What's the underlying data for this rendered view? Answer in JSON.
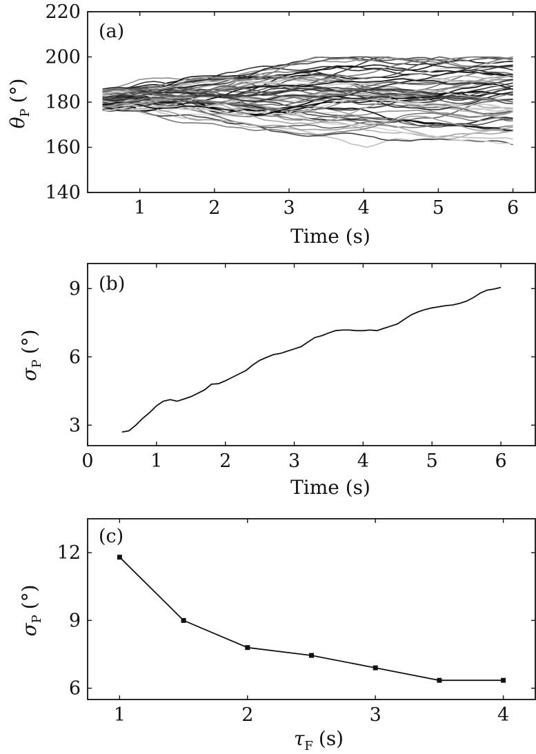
{
  "chart_data": [
    {
      "panel": "(a)",
      "type": "line",
      "xlabel": "Time (s)",
      "ylabel_symbol": "θ",
      "ylabel_subscript": "P",
      "ylabel_unit": "(°)",
      "xlim": [
        0.3,
        6.3
      ],
      "ylim": [
        140,
        220
      ],
      "xticks": [
        1,
        2,
        3,
        4,
        5,
        6
      ],
      "yticks": [
        140,
        160,
        180,
        200,
        220
      ],
      "x_range": [
        0.5,
        6.0
      ],
      "series_count": 60,
      "start_band": [
        176,
        186
      ],
      "end_band": [
        160,
        200
      ],
      "grayscale_series": true,
      "grid": false,
      "legend": "none"
    },
    {
      "panel": "(b)",
      "type": "line",
      "xlabel": "Time (s)",
      "ylabel_symbol": "σ",
      "ylabel_subscript": "P",
      "ylabel_unit": "(°)",
      "xlim": [
        0,
        6.5
      ],
      "ylim": [
        2.1,
        10.1
      ],
      "xticks": [
        0,
        1,
        2,
        3,
        4,
        5,
        6
      ],
      "yticks": [
        3,
        6,
        9
      ],
      "x": [
        0.5,
        0.6,
        0.7,
        0.8,
        0.9,
        1.0,
        1.1,
        1.2,
        1.3,
        1.4,
        1.5,
        1.6,
        1.7,
        1.8,
        1.9,
        2.0,
        2.1,
        2.2,
        2.3,
        2.4,
        2.5,
        2.6,
        2.7,
        2.8,
        2.9,
        3.0,
        3.1,
        3.2,
        3.3,
        3.4,
        3.5,
        3.6,
        3.7,
        3.8,
        3.9,
        4.0,
        4.1,
        4.2,
        4.3,
        4.4,
        4.5,
        4.6,
        4.7,
        4.8,
        4.9,
        5.0,
        5.1,
        5.2,
        5.3,
        5.4,
        5.5,
        5.6,
        5.7,
        5.8,
        5.9,
        6.0
      ],
      "y": [
        2.7,
        2.75,
        3.0,
        3.3,
        3.55,
        3.85,
        4.05,
        4.12,
        4.05,
        4.15,
        4.25,
        4.4,
        4.55,
        4.8,
        4.82,
        4.95,
        5.1,
        5.25,
        5.4,
        5.65,
        5.85,
        5.98,
        6.1,
        6.15,
        6.25,
        6.35,
        6.45,
        6.65,
        6.85,
        6.93,
        7.05,
        7.15,
        7.18,
        7.18,
        7.15,
        7.15,
        7.18,
        7.15,
        7.25,
        7.35,
        7.45,
        7.65,
        7.85,
        7.98,
        8.08,
        8.15,
        8.2,
        8.25,
        8.28,
        8.35,
        8.45,
        8.6,
        8.8,
        8.93,
        8.98,
        9.05
      ],
      "grid": false,
      "legend": "none"
    },
    {
      "panel": "(c)",
      "type": "line",
      "markers": "square",
      "xlabel_symbol": "τ",
      "xlabel_subscript": "F",
      "xlabel_unit": "(s)",
      "ylabel_symbol": "σ",
      "ylabel_subscript": "P",
      "ylabel_unit": "(°)",
      "xlim": [
        0.75,
        4.25
      ],
      "ylim": [
        5.5,
        13.5
      ],
      "xticks": [
        1,
        2,
        3,
        4
      ],
      "yticks": [
        6,
        9,
        12
      ],
      "x": [
        1.0,
        1.5,
        2.0,
        2.5,
        3.0,
        3.5,
        4.0
      ],
      "y": [
        11.8,
        9.0,
        7.8,
        7.45,
        6.9,
        6.35,
        6.35
      ],
      "grid": false,
      "legend": "none"
    }
  ]
}
